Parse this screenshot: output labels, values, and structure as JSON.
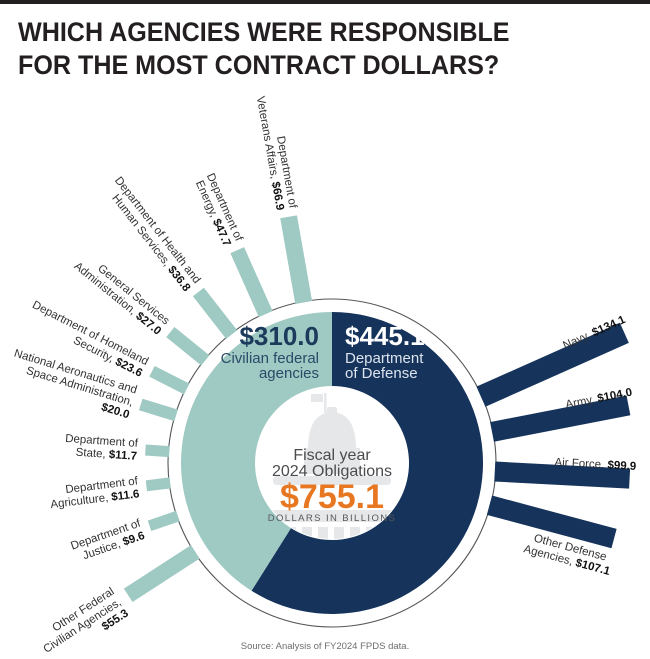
{
  "page": {
    "title_line1": "WHICH AGENCIES WERE RESPONSIBLE",
    "title_line2": "FOR THE MOST CONTRACT DOLLARS?",
    "source": "Source: Analysis of FY2024 FPDS data."
  },
  "colors": {
    "civilian_teal": "#9fc9c3",
    "defense_navy": "#15335b",
    "total_orange": "#e87722",
    "outline": "#55565a",
    "label_text": "#333333",
    "label_value": "#111111",
    "center_text": "#4c4c4e",
    "watermark": "#e5e7e9",
    "title": "#231f20"
  },
  "chart_data": {
    "type": "pie",
    "title": "Fiscal year 2024 Obligations",
    "legend_position": "in-ring",
    "grid": false,
    "total": {
      "label_line1": "Fiscal year",
      "label_line2": "2024 Obligations",
      "value": 755.1,
      "value_label": "$755.1",
      "units_label": "DOLLARS IN BILLIONS"
    },
    "segments": [
      {
        "id": "defense",
        "value": 445.1,
        "value_label": "$445.1",
        "name_lines": [
          "Department",
          "of Defense"
        ],
        "color": "#15335b",
        "value_text_color": "#ffffff",
        "name_text_color": "#dde4ee",
        "label_side": "right"
      },
      {
        "id": "civilian",
        "value": 310.0,
        "value_label": "$310.0",
        "name_lines": [
          "Civilian federal",
          "agencies"
        ],
        "color": "#9fc9c3",
        "value_text_color": "#1b3a5c",
        "name_text_color": "#2a4a68",
        "label_side": "left"
      }
    ],
    "agencies": [
      {
        "id": "veterans-affairs",
        "segment": "civilian",
        "value": 66.9,
        "lines": [
          "Department of",
          "Veterans Affairs, $66.9"
        ],
        "angle_deg": -10,
        "outer_r": 250,
        "spoke_w": 17,
        "label_r": 258,
        "label_perp": 0,
        "anchor": "end",
        "side": "left"
      },
      {
        "id": "energy",
        "segment": "civilian",
        "value": 47.7,
        "lines": [
          "Department of",
          "Energy, $47.7"
        ],
        "angle_deg": -24,
        "outer_r": 233,
        "spoke_w": 15,
        "label_r": 241,
        "label_perp": 0,
        "anchor": "end",
        "side": "left"
      },
      {
        "id": "health-human-services",
        "segment": "civilian",
        "value": 36.8,
        "lines": [
          "Department of Health and",
          "Human Services, $36.8"
        ],
        "angle_deg": -38,
        "outer_r": 217,
        "spoke_w": 14,
        "label_r": 225,
        "label_perp": 0,
        "anchor": "end",
        "side": "left"
      },
      {
        "id": "general-services",
        "segment": "civilian",
        "value": 27.0,
        "lines": [
          "General Services",
          "Administration, $27.0"
        ],
        "angle_deg": -51,
        "outer_r": 208,
        "spoke_w": 13,
        "label_r": 216,
        "label_perp": 0,
        "anchor": "end",
        "side": "left"
      },
      {
        "id": "homeland-security",
        "segment": "civilian",
        "value": 23.6,
        "lines": [
          "Department of Homeland",
          "Security, $23.6"
        ],
        "angle_deg": -63,
        "outer_r": 202,
        "spoke_w": 12,
        "label_r": 210,
        "label_perp": 0,
        "anchor": "end",
        "side": "left"
      },
      {
        "id": "nasa",
        "segment": "civilian",
        "value": 20.0,
        "lines": [
          "National Aeronautics and",
          "Space Administration,",
          "$20.0"
        ],
        "angle_deg": -73,
        "outer_r": 200,
        "spoke_w": 12,
        "label_r": 208,
        "label_perp": 0,
        "anchor": "end",
        "side": "left"
      },
      {
        "id": "state",
        "segment": "civilian",
        "value": 11.7,
        "lines": [
          "Department of",
          "State, $11.7"
        ],
        "angle_deg": -86,
        "outer_r": 187,
        "spoke_w": 11,
        "label_r": 195,
        "label_perp": 0,
        "anchor": "end",
        "side": "left"
      },
      {
        "id": "agriculture",
        "segment": "civilian",
        "value": 11.6,
        "lines": [
          "Department of",
          "Agriculture, $11.6"
        ],
        "angle_deg": -97,
        "outer_r": 187,
        "spoke_w": 11,
        "label_r": 195,
        "label_perp": 0,
        "anchor": "end",
        "side": "left"
      },
      {
        "id": "justice",
        "segment": "civilian",
        "value": 9.6,
        "lines": [
          "Department of",
          "Justice, $9.6"
        ],
        "angle_deg": -109,
        "outer_r": 193,
        "spoke_w": 11,
        "label_r": 201,
        "label_perp": 0,
        "anchor": "end",
        "side": "left"
      },
      {
        "id": "other-federal-civilian",
        "segment": "civilian",
        "value": 55.3,
        "lines": [
          "Other Federal",
          "Civilian Agencies,",
          "$55.3"
        ],
        "angle_deg": -123,
        "outer_r": 243,
        "spoke_w": 16,
        "label_r": 253,
        "label_perp": 0,
        "anchor": "end",
        "side": "left"
      },
      {
        "id": "navy",
        "segment": "defense",
        "value": 134.1,
        "lines": [
          "Navy, $134.1"
        ],
        "angle_deg": 66,
        "outer_r": 320,
        "spoke_w": 22,
        "label_r": 326,
        "label_perp": -13,
        "anchor": "end",
        "side": "right"
      },
      {
        "id": "army",
        "segment": "defense",
        "value": 104.0,
        "lines": [
          "Army, $104.0"
        ],
        "angle_deg": 79,
        "outer_r": 302,
        "spoke_w": 20,
        "label_r": 308,
        "label_perp": -13,
        "anchor": "end",
        "side": "right"
      },
      {
        "id": "air-force",
        "segment": "defense",
        "value": 99.9,
        "lines": [
          "Air Force, $99.9"
        ],
        "angle_deg": 93,
        "outer_r": 298,
        "spoke_w": 20,
        "label_r": 304,
        "label_perp": -13,
        "anchor": "end",
        "side": "right"
      },
      {
        "id": "other-defense",
        "segment": "defense",
        "value": 107.1,
        "lines": [
          "Other Defense",
          "Agencies, $107.1"
        ],
        "angle_deg": 105,
        "outer_r": 292,
        "spoke_w": 20,
        "label_r": 252,
        "label_perp": 26,
        "anchor": "middle",
        "side": "right"
      }
    ]
  }
}
